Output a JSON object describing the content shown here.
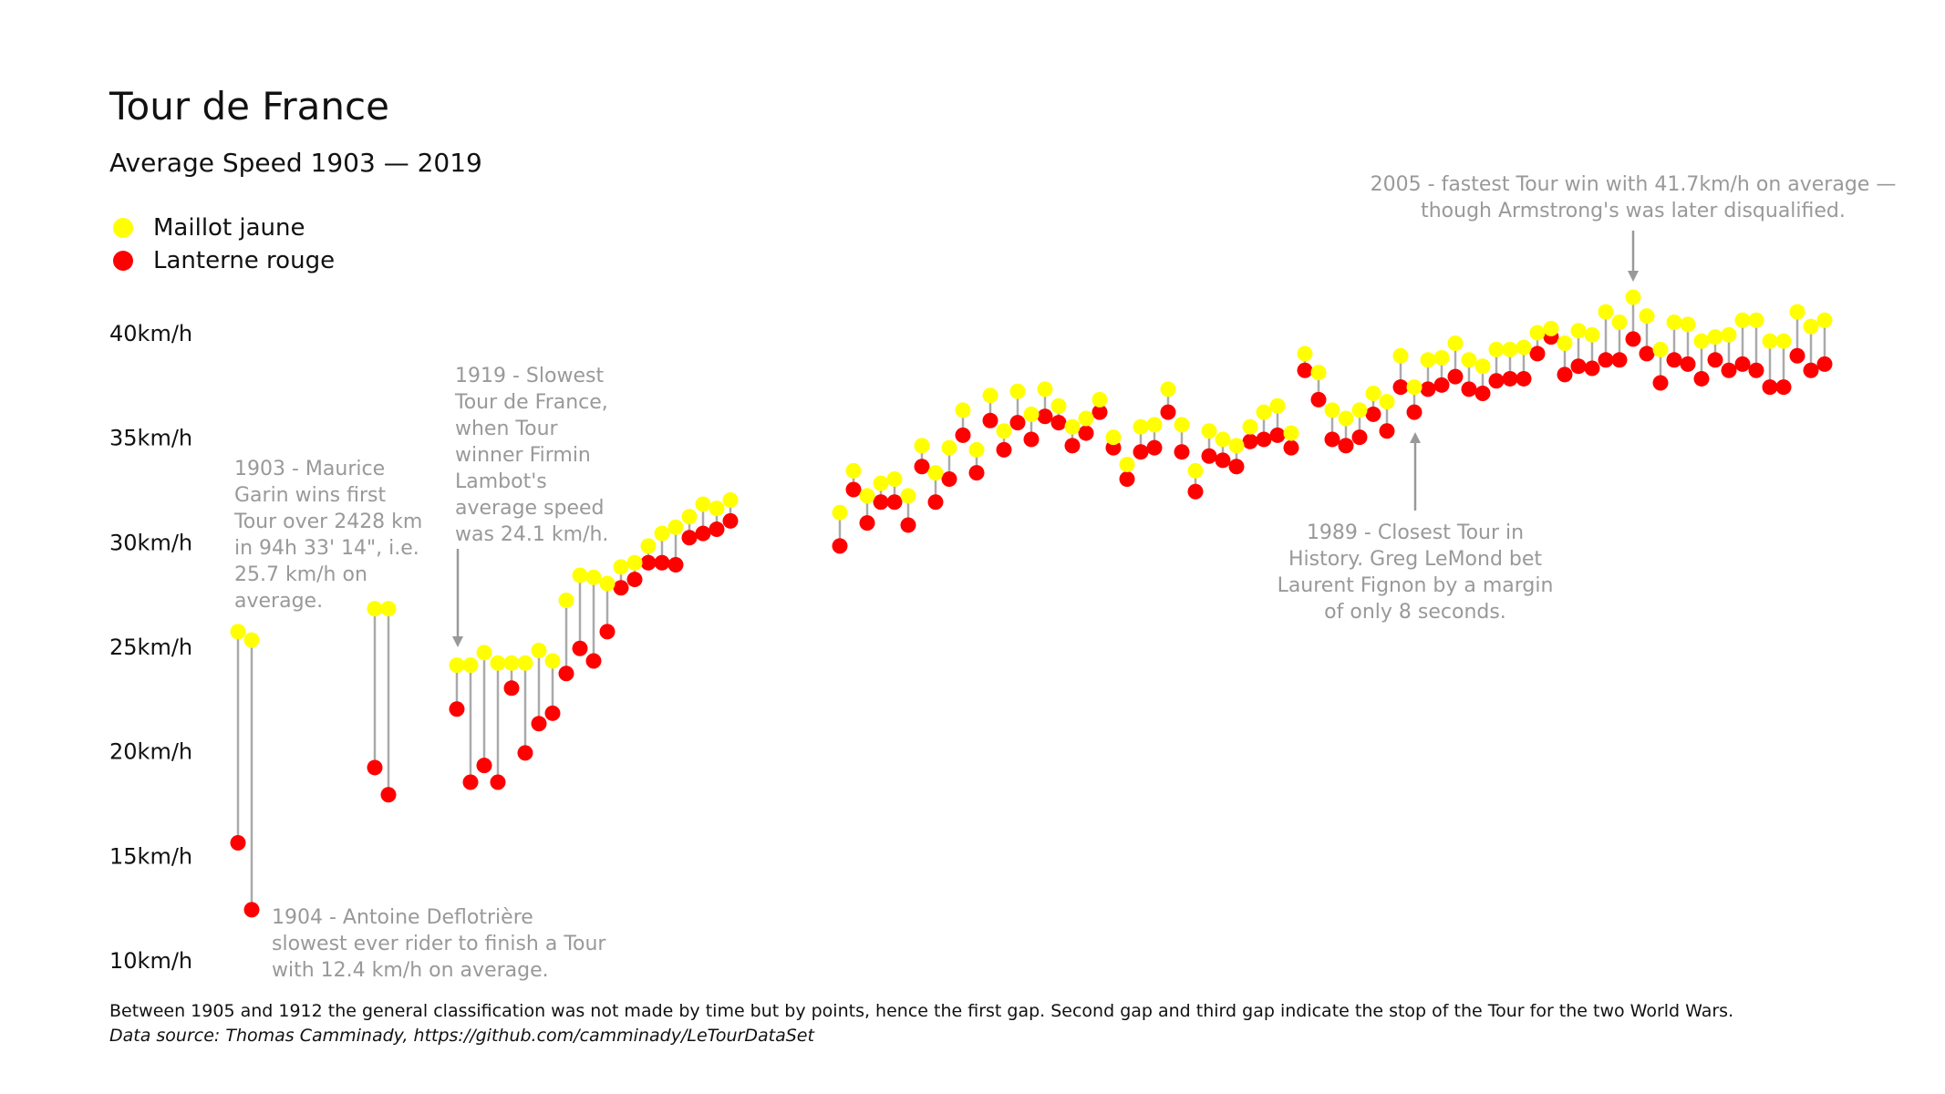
{
  "title": "Tour de France",
  "subtitle": "Average Speed 1903 — 2019",
  "legend": [
    {
      "label": "Maillot jaune",
      "color": "#ffff00"
    },
    {
      "label": "Lanterne rouge",
      "color": "#ff0000"
    }
  ],
  "annotations": {
    "a1903": "1903 - Maurice\nGarin wins first\nTour over 2428 km\nin 94h 33' 14\", i.e.\n25.7 km/h on\naverage.",
    "a1904": "1904 - Antoine Deflotrière\nslowest ever rider to finish a Tour\nwith 12.4 km/h on average.",
    "a1919": "1919 - Slowest\nTour de France,\nwhen Tour\nwinner Firmin\nLambot's\naverage speed\nwas 24.1 km/h.",
    "a1989": "1989 - Closest Tour in\nHistory. Greg LeMond bet\nLaurent Fignon by a margin\nof only 8 seconds.",
    "a2005": "2005 - fastest Tour win with 41.7km/h on average —\nthough Armstrong's was later disqualified."
  },
  "footnote": "Between 1905 and 1912 the general classification was not made by time but by points, hence the first gap. Second gap and third gap indicate the stop of the Tour for the two World Wars.",
  "source": "Data source: Thomas Camminady, https://github.com/camminady/LeTourDataSet",
  "chart_data": {
    "type": "scatter",
    "title": "Tour de France",
    "subtitle": "Average Speed 1903 — 2019",
    "ylim": [
      10,
      40
    ],
    "yticks": [
      10,
      15,
      20,
      25,
      30,
      35,
      40
    ],
    "ytick_labels": [
      "10km/h",
      "15km/h",
      "20km/h",
      "25km/h",
      "30km/h",
      "35km/h",
      "40km/h"
    ],
    "xlim": [
      1903,
      2019
    ],
    "grid": false,
    "legend_placement": "top-left",
    "x": [
      1903,
      1904,
      1913,
      1914,
      1919,
      1920,
      1921,
      1922,
      1923,
      1924,
      1925,
      1926,
      1927,
      1928,
      1929,
      1930,
      1931,
      1932,
      1933,
      1934,
      1935,
      1936,
      1937,
      1938,
      1939,
      1947,
      1948,
      1949,
      1950,
      1951,
      1952,
      1953,
      1954,
      1955,
      1956,
      1957,
      1958,
      1959,
      1960,
      1961,
      1962,
      1963,
      1964,
      1965,
      1966,
      1967,
      1968,
      1969,
      1970,
      1971,
      1972,
      1973,
      1974,
      1975,
      1976,
      1977,
      1978,
      1979,
      1980,
      1981,
      1982,
      1983,
      1984,
      1985,
      1986,
      1987,
      1988,
      1989,
      1990,
      1991,
      1992,
      1993,
      1994,
      1995,
      1996,
      1997,
      1998,
      1999,
      2000,
      2001,
      2002,
      2003,
      2004,
      2005,
      2006,
      2007,
      2008,
      2009,
      2010,
      2011,
      2012,
      2013,
      2014,
      2015,
      2016,
      2017,
      2018,
      2019
    ],
    "series": [
      {
        "name": "Maillot jaune",
        "color": "#ffff00",
        "values": [
          25.7,
          25.3,
          26.8,
          26.8,
          24.1,
          24.1,
          24.7,
          24.2,
          24.2,
          24.2,
          24.8,
          24.3,
          27.2,
          28.4,
          28.3,
          28.0,
          28.8,
          29.0,
          29.8,
          30.4,
          30.7,
          31.2,
          31.8,
          31.6,
          32.0,
          31.4,
          33.4,
          32.2,
          32.8,
          33.0,
          32.2,
          34.6,
          33.3,
          34.5,
          36.3,
          34.4,
          37.0,
          35.3,
          37.2,
          36.1,
          37.3,
          36.5,
          35.5,
          35.9,
          36.8,
          35.0,
          33.7,
          35.5,
          35.6,
          37.3,
          35.6,
          33.4,
          35.3,
          34.9,
          34.6,
          35.5,
          36.2,
          36.5,
          35.2,
          39.0,
          38.1,
          36.3,
          35.9,
          36.3,
          37.1,
          36.7,
          38.9,
          37.4,
          38.7,
          38.8,
          39.5,
          38.7,
          38.4,
          39.2,
          39.2,
          39.3,
          40.0,
          40.2,
          39.5,
          40.1,
          39.9,
          41.0,
          40.5,
          41.7,
          40.8,
          39.2,
          40.5,
          40.4,
          39.6,
          39.8,
          39.9,
          40.6,
          40.6,
          39.6,
          39.6,
          41.0,
          40.3,
          40.6
        ]
      },
      {
        "name": "Lanterne rouge",
        "color": "#ff0000",
        "values": [
          15.6,
          12.4,
          19.2,
          17.9,
          22.0,
          18.5,
          19.3,
          18.5,
          23.0,
          19.9,
          21.3,
          21.8,
          23.7,
          24.9,
          24.3,
          25.7,
          27.8,
          28.2,
          29.0,
          29.0,
          28.9,
          30.2,
          30.4,
          30.6,
          31.0,
          29.8,
          32.5,
          30.9,
          31.9,
          31.9,
          30.8,
          33.6,
          31.9,
          33.0,
          35.1,
          33.3,
          35.8,
          34.4,
          35.7,
          34.9,
          36.0,
          35.7,
          34.6,
          35.2,
          36.2,
          34.5,
          33.0,
          34.3,
          34.5,
          36.2,
          34.3,
          32.4,
          34.1,
          33.9,
          33.6,
          34.8,
          34.9,
          35.1,
          34.5,
          38.2,
          36.8,
          34.9,
          34.6,
          35.0,
          36.1,
          35.3,
          37.4,
          36.2,
          37.3,
          37.5,
          37.9,
          37.3,
          37.1,
          37.7,
          37.8,
          37.8,
          39.0,
          39.8,
          38.0,
          38.4,
          38.3,
          38.7,
          38.7,
          39.7,
          39.0,
          37.6,
          38.7,
          38.5,
          37.8,
          38.7,
          38.2,
          38.5,
          38.2,
          37.4,
          37.4,
          38.9,
          38.2,
          38.5
        ]
      }
    ]
  }
}
